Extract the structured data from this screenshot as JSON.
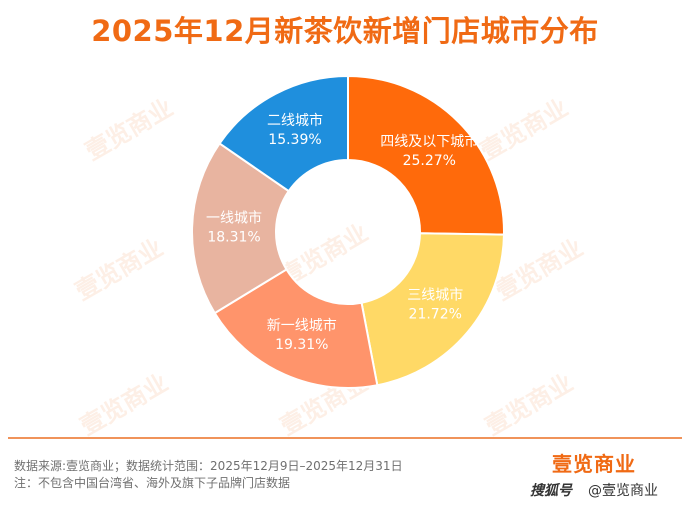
{
  "title": "2025年12月新茶饮新增门店城市分布",
  "chart_data": {
    "type": "pie",
    "title": "2025年12月新茶饮新增门店城市分布",
    "donut": true,
    "slices": [
      {
        "label": "四线及以下城市",
        "value": 25.27,
        "display": "25.27%",
        "color": "#ff6a0b"
      },
      {
        "label": "三线城市",
        "value": 21.72,
        "display": "21.72%",
        "color": "#ffd966"
      },
      {
        "label": "新一线城市",
        "value": 19.31,
        "display": "19.31%",
        "color": "#ff946b"
      },
      {
        "label": "一线城市",
        "value": 18.31,
        "display": "18.31%",
        "color": "#e8b4a0"
      },
      {
        "label": "二线城市",
        "value": 15.39,
        "display": "15.39%",
        "color": "#1f8fdd"
      }
    ]
  },
  "watermark_text": "壹览商业",
  "footer": {
    "source": "数据来源:壹览商业；数据统计范围：2025年12月9日–2025年12月31日",
    "note": "注：不包含中国台湾省、海外及旗下子品牌门店数据"
  },
  "brand_logo": "壹览商业",
  "sohu_mark": "搜狐号",
  "credit": "@壹览商业"
}
